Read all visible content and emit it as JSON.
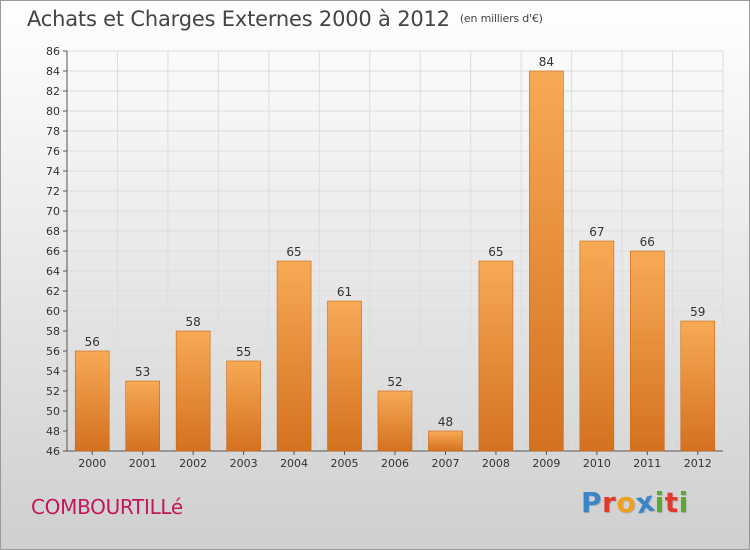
{
  "header": {
    "title": "Achats et Charges Externes 2000 à 2012",
    "unit": "(en milliers d'€)"
  },
  "footer": {
    "commune": "COMBOURTILLé",
    "brand": "Proxiti",
    "brand_letters": [
      {
        "ch": "P",
        "color": "#3a86c8"
      },
      {
        "ch": "r",
        "color": "#e2392d"
      },
      {
        "ch": "o",
        "color": "#f0a020"
      },
      {
        "ch": "x",
        "color": "#3a86c8"
      },
      {
        "ch": "i",
        "color": "#5aa832"
      },
      {
        "ch": "t",
        "color": "#e2392d"
      },
      {
        "ch": "i",
        "color": "#5aa832"
      }
    ]
  },
  "chart_data": {
    "type": "bar",
    "title": "Achats et Charges Externes 2000 à 2012",
    "subtitle": "(en milliers d'€)",
    "xlabel": "",
    "ylabel": "",
    "categories": [
      "2000",
      "2001",
      "2002",
      "2003",
      "2004",
      "2005",
      "2006",
      "2007",
      "2008",
      "2009",
      "2010",
      "2011",
      "2012"
    ],
    "values": [
      56,
      53,
      58,
      55,
      65,
      61,
      52,
      48,
      65,
      84,
      67,
      66,
      59
    ],
    "ylim": [
      46,
      86
    ],
    "yticks": [
      46,
      48,
      50,
      52,
      54,
      56,
      58,
      60,
      62,
      64,
      66,
      68,
      70,
      72,
      74,
      76,
      78,
      80,
      82,
      84,
      86
    ],
    "grid": true,
    "legend": "none",
    "bar_color": "#f0963c",
    "bar_color_light": "#f7aa55",
    "bar_color_dark": "#d4711f"
  }
}
